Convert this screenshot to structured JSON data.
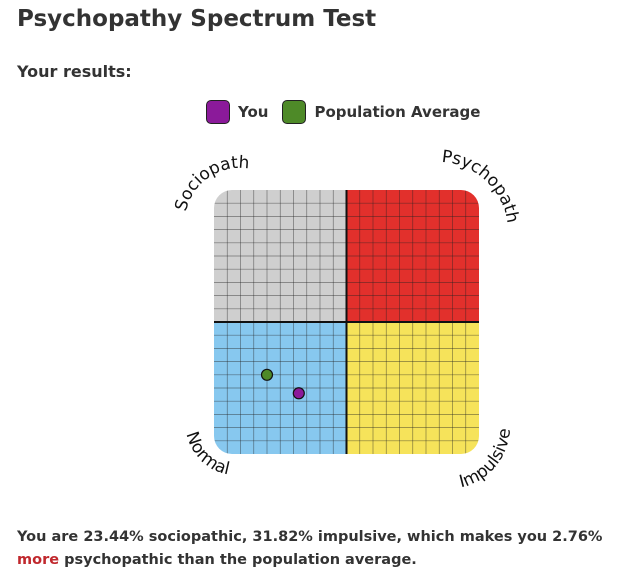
{
  "page": {
    "title": "Psychopathy Spectrum Test",
    "subtitle": "Your results:"
  },
  "legend": {
    "you": {
      "label": "You",
      "color": "#8b1a9a"
    },
    "population": {
      "label": "Population Average",
      "color": "#4e8a28"
    }
  },
  "quadrants": {
    "top_left": {
      "label": "Sociopath",
      "color": "#cfcfcf"
    },
    "top_right": {
      "label": "Psychopath",
      "color": "#e2302c"
    },
    "bottom_left": {
      "label": "Normal",
      "color": "#87c8ef"
    },
    "bottom_right": {
      "label": "Impulsive",
      "color": "#f6e35a"
    }
  },
  "chart_data": {
    "type": "scatter",
    "title": "",
    "xlabel": "Impulsive",
    "ylabel": "Sociopath",
    "xlim": [
      0,
      100
    ],
    "ylim": [
      0,
      100
    ],
    "grid": true,
    "legend_position": "top",
    "series": [
      {
        "name": "You",
        "color": "#8b1a9a",
        "points": [
          {
            "x": 32,
            "y": 23
          }
        ]
      },
      {
        "name": "Population Average",
        "color": "#4e8a28",
        "points": [
          {
            "x": 20,
            "y": 30
          }
        ]
      }
    ]
  },
  "result": {
    "text_before": "You are 23.44% sociopathic, 31.82% impulsive, which makes you 2.76% ",
    "emphasis": "more",
    "text_after": " psychopathic than the population average."
  }
}
